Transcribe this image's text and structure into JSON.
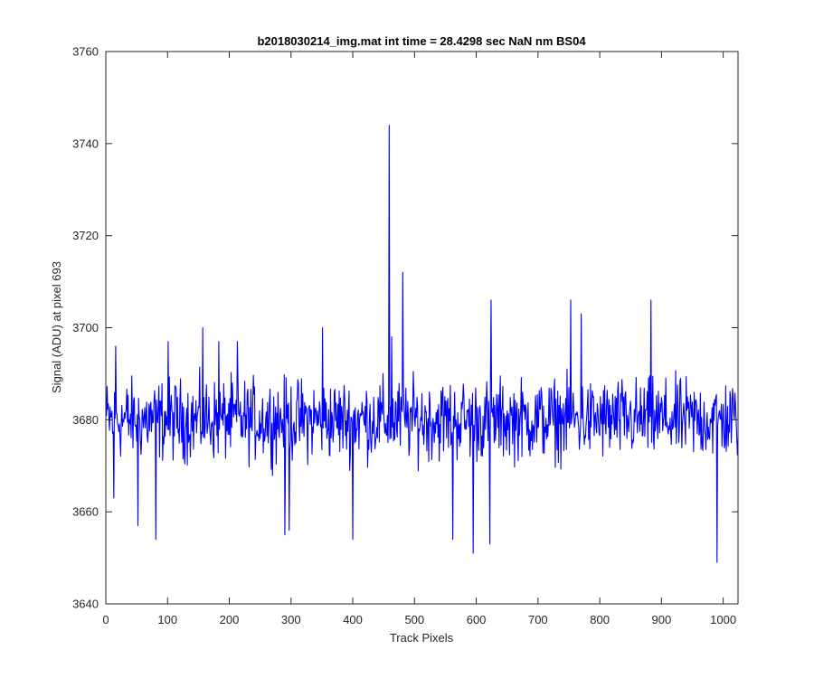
{
  "chart_data": {
    "type": "line",
    "title": "b2018030214_img.mat int time = 28.4298 sec  NaN nm BS04",
    "xlabel": "Track Pixels",
    "ylabel": "Signal (ADU) at pixel 693",
    "xlim": [
      0,
      1024
    ],
    "ylim": [
      3640,
      3760
    ],
    "xticks": [
      0,
      100,
      200,
      300,
      400,
      500,
      600,
      700,
      800,
      900,
      1000
    ],
    "yticks": [
      3640,
      3660,
      3680,
      3700,
      3720,
      3740,
      3760
    ],
    "grid": false,
    "legend": "none",
    "series": [
      {
        "color": "#0000ff",
        "x_start": 1,
        "x_step": 1,
        "baseline": 3680,
        "noise_amplitude": 8,
        "length": 1024,
        "features": [
          {
            "x": 13,
            "y": 3663
          },
          {
            "x": 16,
            "y": 3696
          },
          {
            "x": 52,
            "y": 3657
          },
          {
            "x": 81,
            "y": 3654
          },
          {
            "x": 101,
            "y": 3697
          },
          {
            "x": 157,
            "y": 3700
          },
          {
            "x": 183,
            "y": 3697
          },
          {
            "x": 213,
            "y": 3697
          },
          {
            "x": 290,
            "y": 3655
          },
          {
            "x": 297,
            "y": 3656
          },
          {
            "x": 351,
            "y": 3700
          },
          {
            "x": 400,
            "y": 3654
          },
          {
            "x": 459,
            "y": 3744
          },
          {
            "x": 463,
            "y": 3698
          },
          {
            "x": 481,
            "y": 3712
          },
          {
            "x": 562,
            "y": 3654
          },
          {
            "x": 595,
            "y": 3651
          },
          {
            "x": 622,
            "y": 3653
          },
          {
            "x": 624,
            "y": 3706
          },
          {
            "x": 753,
            "y": 3706
          },
          {
            "x": 770,
            "y": 3703
          },
          {
            "x": 883,
            "y": 3706
          },
          {
            "x": 990,
            "y": 3649
          }
        ]
      }
    ]
  }
}
